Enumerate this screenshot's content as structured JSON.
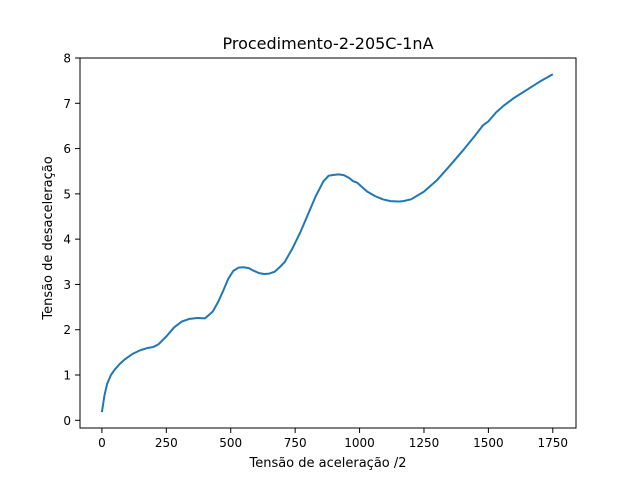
{
  "chart_data": {
    "type": "line",
    "title": "Procedimento-2-205C-1nA",
    "xlabel": "Tensão de aceleração /2",
    "ylabel": "Tensão de desaceleração",
    "xlim": [
      -85,
      1840
    ],
    "ylim": [
      -0.17,
      8.0
    ],
    "xticks": [
      0,
      250,
      500,
      750,
      1000,
      1250,
      1500,
      1750
    ],
    "xtick_labels": [
      "0",
      "250",
      "500",
      "750",
      "1000",
      "1250",
      "1500",
      "1750"
    ],
    "yticks": [
      0,
      1,
      2,
      3,
      4,
      5,
      6,
      7,
      8
    ],
    "ytick_labels": [
      "0",
      "1",
      "2",
      "3",
      "4",
      "5",
      "6",
      "7",
      "8"
    ],
    "grid": false,
    "legend": "none",
    "series": [
      {
        "color": "#1f77b4",
        "x": [
          0,
          10,
          20,
          35,
          50,
          70,
          90,
          120,
          150,
          180,
          200,
          220,
          250,
          280,
          310,
          340,
          370,
          400,
          430,
          450,
          470,
          490,
          510,
          530,
          550,
          570,
          590,
          610,
          630,
          650,
          670,
          690,
          710,
          740,
          770,
          800,
          830,
          860,
          880,
          900,
          920,
          940,
          960,
          975,
          990,
          1010,
          1030,
          1060,
          1090,
          1120,
          1150,
          1170,
          1200,
          1250,
          1300,
          1350,
          1400,
          1450,
          1480,
          1500,
          1530,
          1560,
          1600,
          1650,
          1700,
          1750
        ],
        "y": [
          0.18,
          0.55,
          0.8,
          1.0,
          1.12,
          1.25,
          1.35,
          1.47,
          1.55,
          1.6,
          1.62,
          1.68,
          1.85,
          2.05,
          2.18,
          2.24,
          2.26,
          2.25,
          2.4,
          2.6,
          2.85,
          3.12,
          3.3,
          3.37,
          3.38,
          3.36,
          3.3,
          3.25,
          3.23,
          3.24,
          3.28,
          3.38,
          3.5,
          3.8,
          4.15,
          4.55,
          4.95,
          5.28,
          5.4,
          5.42,
          5.43,
          5.41,
          5.35,
          5.28,
          5.25,
          5.15,
          5.05,
          4.95,
          4.88,
          4.84,
          4.83,
          4.84,
          4.88,
          5.05,
          5.3,
          5.62,
          5.95,
          6.3,
          6.52,
          6.6,
          6.8,
          6.95,
          7.12,
          7.3,
          7.48,
          7.64
        ]
      }
    ]
  }
}
